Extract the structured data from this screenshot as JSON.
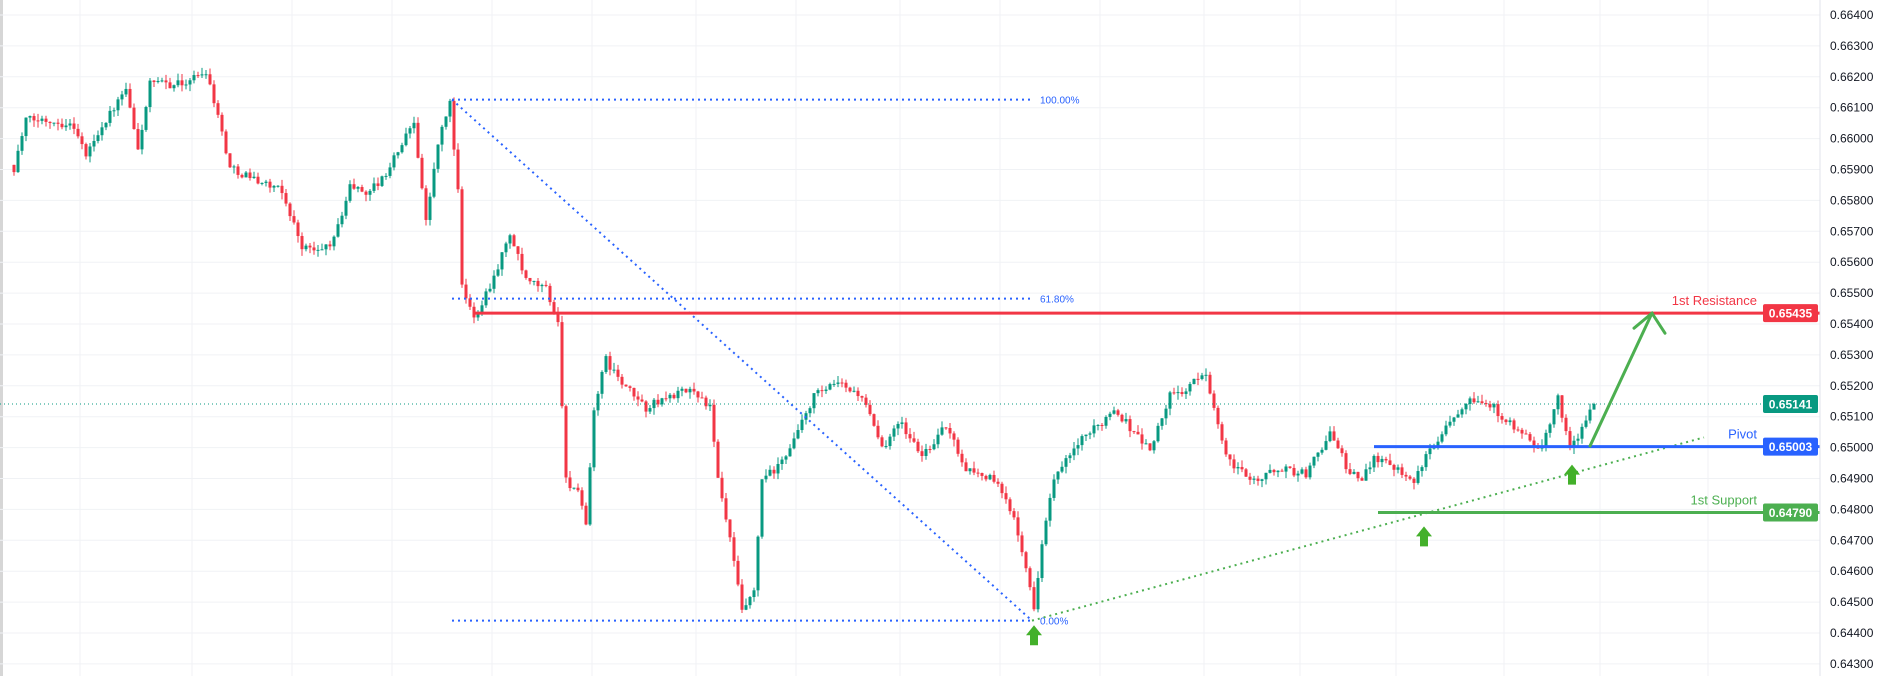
{
  "chart_data": {
    "type": "candlestick",
    "y_axis": {
      "range": [
        0.643,
        0.664
      ],
      "ticks": [
        "0.66400",
        "0.66300",
        "0.66200",
        "0.66100",
        "0.66000",
        "0.65900",
        "0.65800",
        "0.65700",
        "0.65600",
        "0.65500",
        "0.65400",
        "0.65300",
        "0.65200",
        "0.65100",
        "0.65000",
        "0.64900",
        "0.64800",
        "0.64700",
        "0.64600",
        "0.64500",
        "0.64400",
        "0.64300"
      ]
    },
    "grid": true,
    "colors": {
      "up": "#089981",
      "down": "#f23645",
      "fib": "#2962ff",
      "resistance": "#f23645",
      "pivot": "#2962ff",
      "support": "#4caf50",
      "last": "#089981"
    },
    "candle_count": 396,
    "price_path": [
      [
        0,
        0.65905
      ],
      [
        3,
        0.6606
      ],
      [
        9,
        0.6606
      ],
      [
        15,
        0.66041
      ],
      [
        18,
        0.65944
      ],
      [
        21,
        0.66021
      ],
      [
        28,
        0.66157
      ],
      [
        31,
        0.65963
      ],
      [
        34,
        0.66177
      ],
      [
        42,
        0.66177
      ],
      [
        48,
        0.66219
      ],
      [
        49,
        0.66177
      ],
      [
        52,
        0.66021
      ],
      [
        54,
        0.65905
      ],
      [
        61,
        0.65866
      ],
      [
        67,
        0.65827
      ],
      [
        72,
        0.65652
      ],
      [
        76,
        0.65633
      ],
      [
        80,
        0.65672
      ],
      [
        84,
        0.65847
      ],
      [
        88,
        0.65827
      ],
      [
        92,
        0.65866
      ],
      [
        97,
        0.65983
      ],
      [
        100,
        0.6606
      ],
      [
        103,
        0.6573
      ],
      [
        106,
        0.65983
      ],
      [
        109,
        0.66118
      ],
      [
        111,
        0.65827
      ],
      [
        112,
        0.65517
      ],
      [
        115,
        0.65419
      ],
      [
        120,
        0.65555
      ],
      [
        124,
        0.65691
      ],
      [
        128,
        0.65536
      ],
      [
        133,
        0.65517
      ],
      [
        136,
        0.654
      ],
      [
        138,
        0.64895
      ],
      [
        141,
        0.64856
      ],
      [
        143,
        0.6474
      ],
      [
        145,
        0.65128
      ],
      [
        148,
        0.65284
      ],
      [
        152,
        0.65206
      ],
      [
        158,
        0.65128
      ],
      [
        164,
        0.65167
      ],
      [
        170,
        0.65187
      ],
      [
        174,
        0.65128
      ],
      [
        176,
        0.64895
      ],
      [
        179,
        0.64701
      ],
      [
        182,
        0.64468
      ],
      [
        185,
        0.64526
      ],
      [
        187,
        0.64895
      ],
      [
        191,
        0.64934
      ],
      [
        196,
        0.65051
      ],
      [
        200,
        0.65167
      ],
      [
        206,
        0.65206
      ],
      [
        212,
        0.65167
      ],
      [
        217,
        0.64992
      ],
      [
        221,
        0.6509
      ],
      [
        227,
        0.64973
      ],
      [
        233,
        0.6507
      ],
      [
        238,
        0.64934
      ],
      [
        245,
        0.64895
      ],
      [
        250,
        0.64779
      ],
      [
        253,
        0.64623
      ],
      [
        255,
        0.64468
      ],
      [
        257,
        0.64701
      ],
      [
        260,
        0.64895
      ],
      [
        266,
        0.65012
      ],
      [
        271,
        0.6507
      ],
      [
        275,
        0.65128
      ],
      [
        280,
        0.65051
      ],
      [
        284,
        0.64992
      ],
      [
        289,
        0.65167
      ],
      [
        293,
        0.65187
      ],
      [
        298,
        0.65245
      ],
      [
        302,
        0.65012
      ],
      [
        305,
        0.64934
      ],
      [
        311,
        0.64895
      ],
      [
        316,
        0.64934
      ],
      [
        323,
        0.64915
      ],
      [
        329,
        0.6505
      ],
      [
        334,
        0.64915
      ],
      [
        337,
        0.64895
      ],
      [
        340,
        0.64973
      ],
      [
        346,
        0.64934
      ],
      [
        350,
        0.64895
      ],
      [
        355,
        0.65012
      ],
      [
        359,
        0.6509
      ],
      [
        364,
        0.65167
      ],
      [
        370,
        0.65128
      ],
      [
        376,
        0.6505
      ],
      [
        382,
        0.64992
      ],
      [
        386,
        0.65167
      ],
      [
        389,
        0.64992
      ],
      [
        395,
        0.65141
      ]
    ],
    "fibonacci": {
      "high": 0.66126,
      "low": 0.6444,
      "start_index": 109.5,
      "end_index": 254.5,
      "levels": [
        {
          "ratio": 1.0,
          "label": "100.00%"
        },
        {
          "ratio": 0.618,
          "label": "61.80%"
        },
        {
          "ratio": 0.0,
          "label": "0.00%"
        }
      ]
    },
    "levels": {
      "resistance": {
        "label": "1st Resistance",
        "price": 0.65435,
        "price_text": "0.65435",
        "start_index": 115
      },
      "pivot": {
        "label": "Pivot",
        "price": 0.65003,
        "price_text": "0.65003",
        "start_index": 340
      },
      "support": {
        "label": "1st Support",
        "price": 0.6479,
        "price_text": "0.64790",
        "start_index": 341
      }
    },
    "last_price": {
      "price": 0.65141,
      "price_text": "0.65141"
    },
    "trendline": {
      "from": [
        254.5,
        0.6444
      ],
      "to": [
        422.5,
        0.65033
      ]
    },
    "projection_arrow": {
      "from": [
        394,
        0.65005
      ],
      "to": [
        409.5,
        0.65435
      ]
    },
    "up_arrows": [
      [
        255,
        0.64425
      ],
      [
        352.5,
        0.64745
      ],
      [
        389.5,
        0.64945
      ]
    ]
  }
}
